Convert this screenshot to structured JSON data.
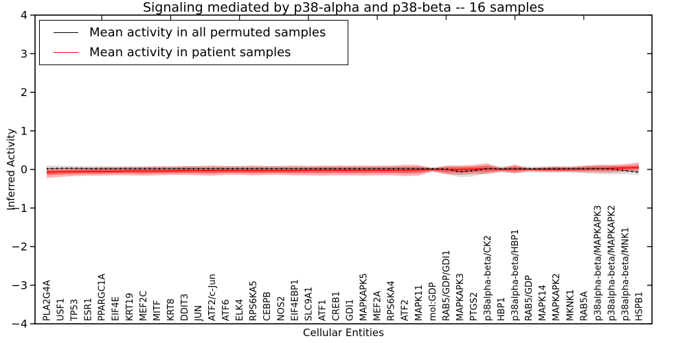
{
  "chart_data": {
    "type": "line",
    "title": "Signaling mediated by p38-alpha and p38-beta -- 16 samples",
    "xlabel": "Cellular Entities",
    "ylabel": "Inferred Activity",
    "ylim": [
      -4,
      4
    ],
    "yticks": [
      -4,
      -3,
      -2,
      -1,
      0,
      1,
      2,
      3,
      4
    ],
    "ytick_labels": [
      "−4",
      "−3",
      "−2",
      "−1",
      "0",
      "1",
      "2",
      "3",
      "4"
    ],
    "grid": false,
    "legend_position": "upper-left",
    "categories": [
      "PLA2G4A",
      "USF1",
      "TP53",
      "ESR1",
      "PPARGC1A",
      "EIF4E",
      "KRT19",
      "MEF2C",
      "MITF",
      "KRT8",
      "DDIT3",
      "JUN",
      "ATF2/c-Jun",
      "ATF6",
      "ELK4",
      "RPS6KA5",
      "CEBPB",
      "NOS2",
      "EIF4EBP1",
      "SLC9A1",
      "ATF1",
      "CREB1",
      "GDI1",
      "MAPKAPK5",
      "MEF2A",
      "RPS6KA4",
      "ATF2",
      "MAPK11",
      "mol:GDP",
      "RAB5/GDP/GDI1",
      "MAPKAPK3",
      "PTGS2",
      "p38alpha-beta/CK2",
      "HBP1",
      "p38alpha-beta/HBP1",
      "RAB5/GDP",
      "MAPK14",
      "MAPKAPK2",
      "MKNK1",
      "RAB5A",
      "p38alpha-beta/MAPKAPK3",
      "p38alpha-beta/MAPKAPK2",
      "p38alpha-beta/MNK1",
      "HSPB1"
    ],
    "series": [
      {
        "name": "Mean activity in all permuted samples",
        "color": "#000000",
        "values": [
          0.02,
          0.03,
          0.03,
          0.02,
          0.02,
          0.02,
          0.02,
          0.02,
          0.02,
          0.02,
          0.02,
          0.02,
          0.02,
          0.02,
          0.02,
          0.02,
          0.02,
          0.02,
          0.02,
          0.02,
          0.02,
          0.02,
          0.02,
          0.02,
          0.02,
          0.02,
          0.02,
          0.02,
          0.02,
          0.01,
          -0.06,
          -0.03,
          0.02,
          0.02,
          0.02,
          0.02,
          0.02,
          0.02,
          0.02,
          0.02,
          0.02,
          0.01,
          -0.03,
          -0.07
        ]
      },
      {
        "name": "Mean activity in patient samples",
        "color": "#ff0000",
        "values": [
          -0.07,
          -0.06,
          -0.06,
          -0.05,
          -0.05,
          -0.05,
          -0.04,
          -0.04,
          -0.04,
          -0.04,
          -0.03,
          -0.03,
          -0.03,
          -0.03,
          -0.03,
          -0.03,
          -0.03,
          -0.03,
          -0.03,
          -0.02,
          -0.02,
          -0.02,
          -0.02,
          -0.02,
          -0.02,
          -0.02,
          -0.02,
          -0.01,
          0.0,
          0.0,
          0.0,
          0.01,
          0.02,
          0.0,
          0.01,
          0.0,
          0.0,
          0.0,
          0.01,
          0.01,
          0.02,
          0.03,
          0.04,
          0.05
        ]
      }
    ],
    "bands": [
      {
        "name": "permuted-samples-spread",
        "color": "#888888",
        "opacity": 0.28,
        "upper": [
          0.1,
          0.1,
          0.09,
          0.09,
          0.09,
          0.08,
          0.08,
          0.08,
          0.08,
          0.08,
          0.08,
          0.08,
          0.08,
          0.08,
          0.08,
          0.08,
          0.08,
          0.08,
          0.08,
          0.08,
          0.08,
          0.08,
          0.08,
          0.08,
          0.08,
          0.08,
          0.08,
          0.08,
          0.06,
          0.08,
          0.08,
          0.08,
          0.1,
          0.08,
          0.08,
          0.08,
          0.08,
          0.08,
          0.08,
          0.09,
          0.1,
          0.1,
          0.08,
          0.06
        ],
        "lower": [
          -0.12,
          -0.11,
          -0.1,
          -0.1,
          -0.1,
          -0.09,
          -0.09,
          -0.09,
          -0.09,
          -0.09,
          -0.09,
          -0.08,
          -0.1,
          -0.08,
          -0.08,
          -0.08,
          -0.08,
          -0.08,
          -0.08,
          -0.08,
          -0.08,
          -0.08,
          -0.08,
          -0.08,
          -0.08,
          -0.08,
          -0.1,
          -0.1,
          -0.06,
          -0.12,
          -0.2,
          -0.18,
          -0.1,
          -0.08,
          -0.1,
          -0.08,
          -0.08,
          -0.08,
          -0.08,
          -0.1,
          -0.12,
          -0.12,
          -0.12,
          -0.14
        ]
      },
      {
        "name": "patient-samples-outer-spread",
        "color": "#ff0000",
        "opacity": 0.3,
        "upper": [
          0.04,
          0.04,
          0.05,
          0.05,
          0.06,
          0.06,
          0.07,
          0.07,
          0.08,
          0.08,
          0.09,
          0.09,
          0.1,
          0.09,
          0.09,
          0.1,
          0.09,
          0.09,
          0.1,
          0.09,
          0.1,
          0.1,
          0.1,
          0.1,
          0.1,
          0.1,
          0.12,
          0.12,
          0.03,
          0.1,
          0.1,
          0.12,
          0.16,
          0.04,
          0.13,
          0.03,
          0.06,
          0.08,
          0.07,
          0.1,
          0.12,
          0.12,
          0.14,
          0.18
        ],
        "lower": [
          -0.22,
          -0.19,
          -0.17,
          -0.16,
          -0.16,
          -0.15,
          -0.15,
          -0.16,
          -0.15,
          -0.14,
          -0.14,
          -0.15,
          -0.16,
          -0.14,
          -0.14,
          -0.15,
          -0.14,
          -0.14,
          -0.15,
          -0.15,
          -0.16,
          -0.15,
          -0.15,
          -0.16,
          -0.15,
          -0.15,
          -0.17,
          -0.16,
          -0.05,
          -0.12,
          -0.14,
          -0.12,
          -0.12,
          -0.05,
          -0.1,
          -0.04,
          -0.06,
          -0.06,
          -0.06,
          -0.07,
          -0.08,
          -0.08,
          -0.06,
          -0.04
        ]
      },
      {
        "name": "patient-samples-inner-spread",
        "color": "#ff0000",
        "opacity": 0.35,
        "upper": [
          -0.01,
          -0.01,
          0.0,
          0.0,
          0.01,
          0.01,
          0.02,
          0.02,
          0.03,
          0.03,
          0.04,
          0.04,
          0.04,
          0.04,
          0.04,
          0.04,
          0.04,
          0.04,
          0.04,
          0.04,
          0.05,
          0.05,
          0.05,
          0.05,
          0.05,
          0.05,
          0.06,
          0.06,
          0.02,
          0.06,
          0.06,
          0.07,
          0.1,
          0.02,
          0.08,
          0.02,
          0.03,
          0.05,
          0.04,
          0.06,
          0.08,
          0.08,
          0.1,
          0.12
        ],
        "lower": [
          -0.15,
          -0.13,
          -0.12,
          -0.11,
          -0.11,
          -0.1,
          -0.1,
          -0.11,
          -0.1,
          -0.1,
          -0.09,
          -0.1,
          -0.1,
          -0.09,
          -0.09,
          -0.1,
          -0.09,
          -0.09,
          -0.1,
          -0.09,
          -0.1,
          -0.09,
          -0.09,
          -0.1,
          -0.09,
          -0.09,
          -0.1,
          -0.09,
          -0.03,
          -0.07,
          -0.08,
          -0.06,
          -0.06,
          -0.03,
          -0.05,
          -0.02,
          -0.03,
          -0.04,
          -0.04,
          -0.03,
          -0.03,
          -0.03,
          -0.01,
          0.0
        ]
      }
    ]
  }
}
